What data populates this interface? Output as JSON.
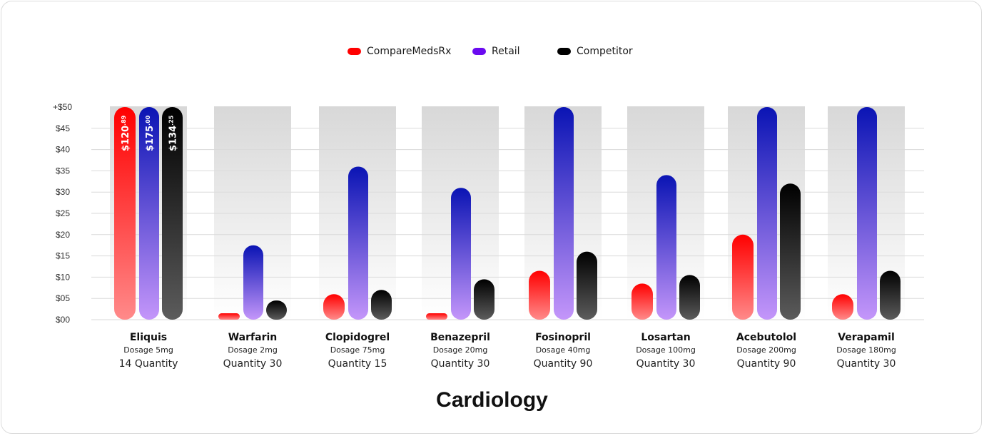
{
  "chart_data": {
    "type": "bar",
    "title": "Cardiology",
    "xlabel": "",
    "ylabel": "",
    "ylim": [
      0,
      50
    ],
    "y_ticks": [
      "$00",
      "$05",
      "$10",
      "$15",
      "$20",
      "$25",
      "$30",
      "$35",
      "$40",
      "$45",
      "+$50"
    ],
    "y_tick_values": [
      0,
      5,
      10,
      15,
      20,
      25,
      30,
      35,
      40,
      45,
      50
    ],
    "grid": true,
    "legend_position": "top-center",
    "categories": [
      "Eliquis",
      "Warfarin",
      "Clopidogrel",
      "Benazepril",
      "Fosinopril",
      "Losartan",
      "Acebutolol",
      "Verapamil"
    ],
    "category_details": [
      {
        "name": "Eliquis",
        "dosage": "Dosage 5mg",
        "quantity": "14 Quantity"
      },
      {
        "name": "Warfarin",
        "dosage": "Dosage 2mg",
        "quantity": "Quantity 30"
      },
      {
        "name": "Clopidogrel",
        "dosage": "Dosage 75mg",
        "quantity": "Quantity 15"
      },
      {
        "name": "Benazepril",
        "dosage": "Dosage 20mg",
        "quantity": "Quantity 30"
      },
      {
        "name": "Fosinopril",
        "dosage": "Dosage 40mg",
        "quantity": "Quantity 90"
      },
      {
        "name": "Losartan",
        "dosage": "Dosage 100mg",
        "quantity": "Quantity 30"
      },
      {
        "name": "Acebutolol",
        "dosage": "Dosage 200mg",
        "quantity": "Quantity 90"
      },
      {
        "name": "Verapamil",
        "dosage": "Dosage 180mg",
        "quantity": "Quantity 30"
      }
    ],
    "series": [
      {
        "name": "CompareMedsRx",
        "color_top": "#ff0000",
        "color_bottom": "#ff8a8a",
        "values": [
          120.89,
          1.5,
          6,
          1.5,
          11.5,
          8.5,
          20,
          6
        ]
      },
      {
        "name": "Retail",
        "color_top": "#0a14b4",
        "color_bottom": "#c496fa",
        "values": [
          175.0,
          17.5,
          36,
          31,
          50,
          34,
          50,
          50
        ]
      },
      {
        "name": "Competitor",
        "color_top": "#000000",
        "color_bottom": "#5c5c5c",
        "values": [
          134.25,
          4.5,
          7,
          9.5,
          16,
          10.5,
          32,
          11.5
        ]
      }
    ],
    "bar_labels": [
      {
        "category": "Eliquis",
        "series": "CompareMedsRx",
        "main": "$120",
        "cents": ".89"
      },
      {
        "category": "Eliquis",
        "series": "Retail",
        "main": "$175",
        "cents": ".00"
      },
      {
        "category": "Eliquis",
        "series": "Competitor",
        "main": "$134",
        "cents": ".25"
      }
    ]
  },
  "legend": {
    "items": [
      {
        "label": "CompareMedsRx",
        "color": "#ff0000"
      },
      {
        "label": "Retail",
        "color": "#6a0af0"
      },
      {
        "label": "Competitor",
        "color": "#000000"
      }
    ]
  }
}
